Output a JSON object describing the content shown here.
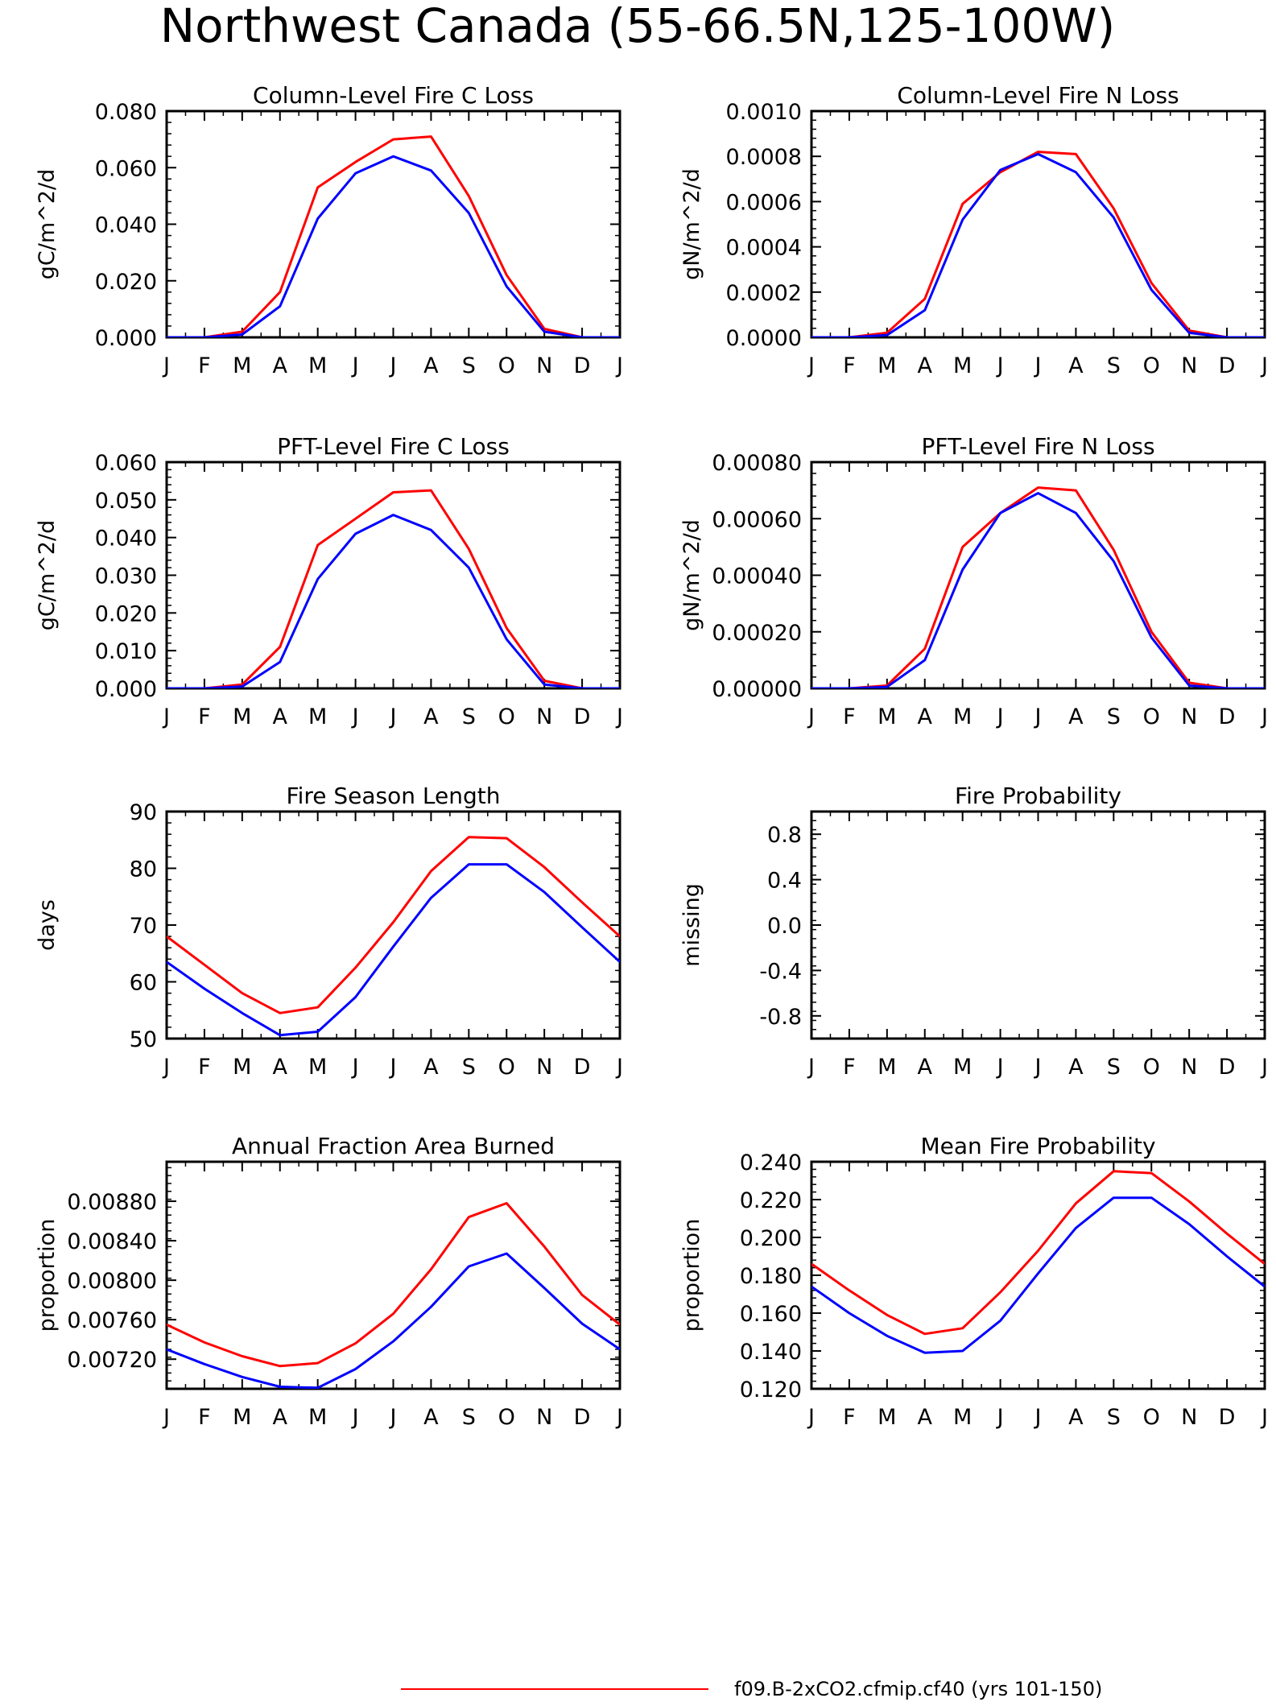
{
  "figure": {
    "title": "Northwest Canada (55-66.5N,125-100W)",
    "legend": [
      {
        "label": "f09.B-2xCO2.cfmip.cf40 (yrs 101-150)",
        "color": "#ff0000"
      }
    ]
  },
  "months": [
    "J",
    "F",
    "M",
    "A",
    "M",
    "J",
    "J",
    "A",
    "S",
    "O",
    "N",
    "D",
    "J"
  ],
  "chart_data": [
    {
      "type": "line",
      "title": "Column-Level Fire C Loss",
      "ylabel": "gC/m^2/d",
      "ylim": [
        0,
        0.08
      ],
      "yticks": [
        0,
        0.02,
        0.04,
        0.06,
        0.08
      ],
      "ytick_labels": [
        "0.000",
        "0.020",
        "0.040",
        "0.060",
        "0.080"
      ],
      "x": [
        1,
        2,
        3,
        4,
        5,
        6,
        7,
        8,
        9,
        10,
        11,
        12,
        13
      ],
      "series": [
        {
          "color": "#ff0000",
          "values": [
            0.0,
            0.0,
            0.002,
            0.016,
            0.053,
            0.062,
            0.07,
            0.071,
            0.05,
            0.022,
            0.003,
            0.0,
            0.0
          ]
        },
        {
          "color": "#0000ff",
          "values": [
            0.0,
            0.0,
            0.001,
            0.011,
            0.042,
            0.058,
            0.064,
            0.059,
            0.044,
            0.018,
            0.002,
            0.0,
            0.0
          ]
        }
      ]
    },
    {
      "type": "line",
      "title": "Column-Level Fire N Loss",
      "ylabel": "gN/m^2/d",
      "ylim": [
        0,
        0.001
      ],
      "yticks": [
        0,
        0.0002,
        0.0004,
        0.0006,
        0.0008,
        0.001
      ],
      "ytick_labels": [
        "0.0000",
        "0.0002",
        "0.0004",
        "0.0006",
        "0.0008",
        "0.0010"
      ],
      "x": [
        1,
        2,
        3,
        4,
        5,
        6,
        7,
        8,
        9,
        10,
        11,
        12,
        13
      ],
      "series": [
        {
          "color": "#ff0000",
          "values": [
            0.0,
            0.0,
            2e-05,
            0.00017,
            0.00059,
            0.00073,
            0.00082,
            0.00081,
            0.00057,
            0.00024,
            3e-05,
            0.0,
            0.0
          ]
        },
        {
          "color": "#0000ff",
          "values": [
            0.0,
            0.0,
            1e-05,
            0.00012,
            0.00052,
            0.00074,
            0.00081,
            0.00073,
            0.00053,
            0.00021,
            2e-05,
            0.0,
            0.0
          ]
        }
      ]
    },
    {
      "type": "line",
      "title": "PFT-Level Fire C Loss",
      "ylabel": "gC/m^2/d",
      "ylim": [
        0,
        0.06
      ],
      "yticks": [
        0,
        0.01,
        0.02,
        0.03,
        0.04,
        0.05,
        0.06
      ],
      "ytick_labels": [
        "0.000",
        "0.010",
        "0.020",
        "0.030",
        "0.040",
        "0.050",
        "0.060"
      ],
      "x": [
        1,
        2,
        3,
        4,
        5,
        6,
        7,
        8,
        9,
        10,
        11,
        12,
        13
      ],
      "series": [
        {
          "color": "#ff0000",
          "values": [
            0.0,
            0.0,
            0.001,
            0.011,
            0.038,
            0.045,
            0.052,
            0.0525,
            0.037,
            0.016,
            0.002,
            0.0,
            0.0
          ]
        },
        {
          "color": "#0000ff",
          "values": [
            0.0,
            0.0,
            0.0005,
            0.007,
            0.029,
            0.041,
            0.046,
            0.042,
            0.032,
            0.013,
            0.001,
            0.0,
            0.0
          ]
        }
      ]
    },
    {
      "type": "line",
      "title": "PFT-Level Fire N Loss",
      "ylabel": "gN/m^2/d",
      "ylim": [
        0,
        0.0008
      ],
      "yticks": [
        0,
        0.0002,
        0.0004,
        0.0006,
        0.0008
      ],
      "ytick_labels": [
        "0.00000",
        "0.00020",
        "0.00040",
        "0.00060",
        "0.00080"
      ],
      "x": [
        1,
        2,
        3,
        4,
        5,
        6,
        7,
        8,
        9,
        10,
        11,
        12,
        13
      ],
      "series": [
        {
          "color": "#ff0000",
          "values": [
            0.0,
            0.0,
            1e-05,
            0.00014,
            0.0005,
            0.00062,
            0.00071,
            0.0007,
            0.00049,
            0.0002,
            2e-05,
            0.0,
            0.0
          ]
        },
        {
          "color": "#0000ff",
          "values": [
            0.0,
            0.0,
            5e-06,
            0.0001,
            0.00042,
            0.00062,
            0.00069,
            0.00062,
            0.00045,
            0.00018,
            1e-05,
            0.0,
            0.0
          ]
        }
      ]
    },
    {
      "type": "line",
      "title": "Fire Season Length",
      "ylabel": "days",
      "ylim": [
        50,
        90
      ],
      "yticks": [
        50,
        60,
        70,
        80,
        90
      ],
      "ytick_labels": [
        "50",
        "60",
        "70",
        "80",
        "90"
      ],
      "x": [
        1,
        2,
        3,
        4,
        5,
        6,
        7,
        8,
        9,
        10,
        11,
        12,
        13
      ],
      "series": [
        {
          "color": "#ff0000",
          "values": [
            68,
            63,
            58,
            54.5,
            55.5,
            62.5,
            70.5,
            79.5,
            85.5,
            85.3,
            80.2,
            74,
            68
          ]
        },
        {
          "color": "#0000ff",
          "values": [
            63.5,
            58.8,
            54.5,
            50.6,
            51.2,
            57.3,
            66.2,
            74.8,
            80.7,
            80.7,
            75.8,
            69.6,
            63.5
          ]
        }
      ]
    },
    {
      "type": "line",
      "title": "Fire Probability",
      "ylabel": "missing",
      "ylim": [
        -1,
        1
      ],
      "yticks": [
        -0.8,
        -0.4,
        0.0,
        0.4,
        0.8
      ],
      "ytick_labels": [
        "-0.8",
        "-0.4",
        "0.0",
        "0.4",
        "0.8"
      ],
      "x": [
        1,
        2,
        3,
        4,
        5,
        6,
        7,
        8,
        9,
        10,
        11,
        12,
        13
      ],
      "series": []
    },
    {
      "type": "line",
      "title": "Annual Fraction Area Burned",
      "ylabel": "proportion",
      "ylim": [
        0.0069,
        0.0092
      ],
      "yticks": [
        0.0072,
        0.0076,
        0.008,
        0.0084,
        0.0088
      ],
      "ytick_labels": [
        "0.00720",
        "0.00760",
        "0.00800",
        "0.00840",
        "0.00880"
      ],
      "x": [
        1,
        2,
        3,
        4,
        5,
        6,
        7,
        8,
        9,
        10,
        11,
        12,
        13
      ],
      "series": [
        {
          "color": "#ff0000",
          "values": [
            0.00755,
            0.00737,
            0.00723,
            0.00713,
            0.00716,
            0.00736,
            0.00766,
            0.00811,
            0.00864,
            0.00878,
            0.00834,
            0.00785,
            0.00755
          ]
        },
        {
          "color": "#0000ff",
          "values": [
            0.0073,
            0.00715,
            0.00702,
            0.00692,
            0.00691,
            0.0071,
            0.00738,
            0.00773,
            0.00814,
            0.00827,
            0.00792,
            0.00756,
            0.0073
          ]
        }
      ]
    },
    {
      "type": "line",
      "title": "Mean Fire Probability",
      "ylabel": "proportion",
      "ylim": [
        0.12,
        0.24
      ],
      "yticks": [
        0.12,
        0.14,
        0.16,
        0.18,
        0.2,
        0.22,
        0.24
      ],
      "ytick_labels": [
        "0.120",
        "0.140",
        "0.160",
        "0.180",
        "0.200",
        "0.220",
        "0.240"
      ],
      "x": [
        1,
        2,
        3,
        4,
        5,
        6,
        7,
        8,
        9,
        10,
        11,
        12,
        13
      ],
      "series": [
        {
          "color": "#ff0000",
          "values": [
            0.186,
            0.172,
            0.159,
            0.149,
            0.152,
            0.171,
            0.193,
            0.218,
            0.235,
            0.234,
            0.219,
            0.202,
            0.186
          ]
        },
        {
          "color": "#0000ff",
          "values": [
            0.174,
            0.16,
            0.148,
            0.139,
            0.14,
            0.156,
            0.181,
            0.205,
            0.221,
            0.221,
            0.207,
            0.19,
            0.174
          ]
        }
      ]
    }
  ]
}
